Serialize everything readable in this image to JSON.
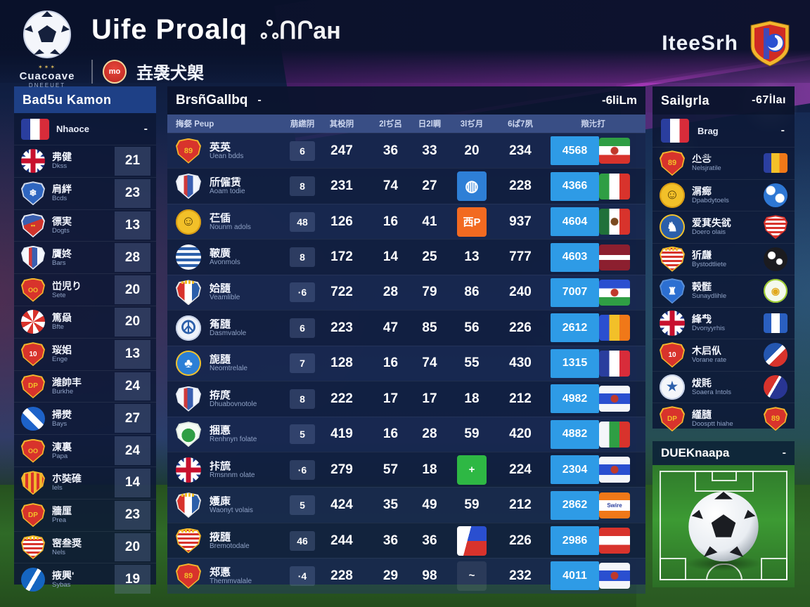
{
  "colors": {
    "accent_cyan": "#45c8f5",
    "points_blue": "#2e9be6",
    "panel_header_blue": "#1e4086",
    "badge_orange": "#f26a21",
    "badge_green": "#2eb844",
    "swoosh_purple": "#8a2f9e"
  },
  "header": {
    "title": "Uife Proalq",
    "title_script": "ஃՈՐан",
    "logo_text": "Cuacoave",
    "logo_subtext": "DNEEUET",
    "logo_stars": "✶✶✶",
    "badge_text": "mo",
    "cjk_text": "壵袰犬㮾",
    "right_text": "IteeSrh"
  },
  "left_panel": {
    "title": "Bad5u Kamon",
    "featured": {
      "name": "Nhaoce",
      "icon": "flag-france",
      "action": "-"
    },
    "items": [
      {
        "name": "弗健",
        "sub": "Dkss",
        "value": "21",
        "icon": "ball-ukflag"
      },
      {
        "name": "肩絆",
        "sub": "Bcds",
        "value": "23",
        "icon": "crest-bluewhite"
      },
      {
        "name": "徱実",
        "sub": "Dogts",
        "value": "13",
        "icon": "crest-redblue"
      },
      {
        "name": "贋㚵",
        "sub": "Bars",
        "value": "28",
        "icon": "crest-tower"
      },
      {
        "name": "峃児り",
        "sub": "Sete",
        "value": "20",
        "icon": "crest-redyellow"
      },
      {
        "name": "篤赑",
        "sub": "Bfte",
        "value": "20",
        "icon": "ball-redwhite"
      },
      {
        "name": "珱㚶",
        "sub": "Enge",
        "value": "13",
        "icon": "crest-ten"
      },
      {
        "name": "潍帥丰",
        "sub": "Burkhe",
        "value": "24",
        "icon": "crest-dp"
      },
      {
        "name": "掃燓",
        "sub": "Bays",
        "value": "27",
        "icon": "circle-bluestripe"
      },
      {
        "name": "涷裏",
        "sub": "Papa",
        "value": "24",
        "icon": "crest-redyellow"
      },
      {
        "name": "朩奘碓",
        "sub": "Iels",
        "value": "14",
        "icon": "crest-stripes"
      },
      {
        "name": "牆厘",
        "sub": "Prea",
        "value": "23",
        "icon": "crest-dp"
      },
      {
        "name": "宻叁奨",
        "sub": "Nels",
        "value": "20",
        "icon": "crest-crownstripes"
      },
      {
        "name": "掖興'",
        "sub": "Sybas",
        "value": "19",
        "icon": "circle-blue"
      }
    ]
  },
  "main_table": {
    "title": "BrsñGallbq",
    "collapse": "-",
    "link": "-6liLm",
    "columns": [
      "挴㛑 Peup",
      "萠繺阴",
      "其杸阴",
      "2lぢ呂",
      "日2l睭",
      "3lぢ月",
      "6ぱ7夙",
      "羪㲺打"
    ],
    "rows": [
      {
        "name": "英英",
        "sub": "Uean bdds",
        "icon": "crest-89",
        "badge": "6",
        "cells": [
          "247",
          "36",
          "33",
          "20",
          "234"
        ],
        "points": "4568",
        "flag": "flag-iran"
      },
      {
        "name": "斦僱赁",
        "sub": "Aoam todie",
        "icon": "crest-tower",
        "badge": "8",
        "cells": [
          "231",
          "74",
          "27",
          "@badge-blue-ball",
          "228"
        ],
        "points": "4366",
        "flag": "flag-italy"
      },
      {
        "name": "芢偛",
        "sub": "Nounm adols",
        "icon": "crest-smiley",
        "badge": "48",
        "cells": [
          "126",
          "16",
          "41",
          "@badge-orange-tgp",
          "937"
        ],
        "points": "4604",
        "flag": "flag-mexico"
      },
      {
        "name": "鞁廣",
        "sub": "Avonmols",
        "icon": "ball-bluestripes",
        "badge": "8",
        "cells": [
          "172",
          "14",
          "25",
          "13",
          "777"
        ],
        "points": "4603",
        "flag": "flag-latvia"
      },
      {
        "name": "姶膸",
        "sub": "Veamlible",
        "icon": "crest-crown",
        "badge": "·6",
        "cells": [
          "722",
          "28",
          "79",
          "86",
          "240"
        ],
        "points": "7007",
        "flag": "flag-bwg"
      },
      {
        "name": "䇶膸",
        "sub": "Dasmvalole",
        "icon": "circle-peace",
        "badge": "6",
        "cells": [
          "223",
          "47",
          "85",
          "56",
          "226"
        ],
        "points": "2612",
        "flag": "flag-byo"
      },
      {
        "name": "旎膸",
        "sub": "Neomtrelale",
        "icon": "circle-leaf",
        "badge": "7",
        "cells": [
          "128",
          "16",
          "74",
          "55",
          "430"
        ],
        "points": "1315",
        "flag": "flag-france"
      },
      {
        "name": "拵庹",
        "sub": "Dhuabovnotole",
        "icon": "crest-tower",
        "badge": "8",
        "cells": [
          "222",
          "17",
          "17",
          "18",
          "212"
        ],
        "points": "4982",
        "flag": "flag-wbw"
      },
      {
        "name": "捆悳",
        "sub": "Renhnyn folate",
        "icon": "crest-green",
        "badge": "5",
        "cells": [
          "419",
          "16",
          "28",
          "59",
          "420"
        ],
        "points": "4882",
        "flag": "flag-wgr"
      },
      {
        "name": "拤旈",
        "sub": "Rmsnnm olate",
        "icon": "ball-ukflag",
        "badge": "·6",
        "cells": [
          "279",
          "57",
          "18",
          "@badge-green-plus",
          "224"
        ],
        "points": "2304",
        "flag": "flag-wbw"
      },
      {
        "name": "嬳㢀",
        "sub": "Waonyt volais",
        "icon": "crest-crown",
        "badge": "5",
        "cells": [
          "424",
          "35",
          "49",
          "59",
          "212"
        ],
        "points": "2862",
        "flag": "flag-orange-swire"
      },
      {
        "name": "掖膸",
        "sub": "Bremotodale",
        "icon": "crest-crownstripes",
        "badge": "46",
        "cells": [
          "244",
          "36",
          "36",
          "@flag-ph",
          "226"
        ],
        "points": "2986",
        "flag": "flag-austria"
      },
      {
        "name": "郑悳",
        "sub": "Themmvalale",
        "icon": "crest-89",
        "badge": "·4",
        "cells": [
          "228",
          "29",
          "98",
          "@badge-faint",
          "232"
        ],
        "points": "4011",
        "flag": "flag-wbw"
      }
    ],
    "badge_labels": {
      "badge-orange-tgp": "西P",
      "badge-green-plus": "+",
      "badge-faint": "~",
      "badge-blue-ball": ""
    }
  },
  "right_panel": {
    "title": "Sailgrla",
    "link": "-67İlaı",
    "featured": {
      "name": "Brag",
      "icon": "flag-france",
      "action": "-"
    },
    "items": [
      {
        "name": "尐㪳",
        "sub": "Nelsjratile",
        "icon": "crest-89",
        "right_icon": "flag-romania"
      },
      {
        "name": "㴮㾿",
        "sub": "Dpabdytoels",
        "icon": "crest-smiley",
        "right_icon": "ball-bluewhite"
      },
      {
        "name": "爱萁失㞃",
        "sub": "Doero olais",
        "icon": "circle-rooster",
        "right_icon": "crest-lighthouse"
      },
      {
        "name": "㹞㼓",
        "sub": "Bystodtliete",
        "icon": "crest-crownstripes",
        "right_icon": "ball-dark"
      },
      {
        "name": "㨌䯗",
        "sub": "Sunaydlihle",
        "icon": "crest-towerblue",
        "right_icon": "circle-greenyellow"
      },
      {
        "name": "綘𢦔",
        "sub": "Dvonyyrhis",
        "icon": "ball-ukflag",
        "right_icon": "flag-bluewhite"
      },
      {
        "name": "木𡰪㐺",
        "sub": "Vorane rate",
        "icon": "crest-ten",
        "right_icon": "ball-pepsi"
      },
      {
        "name": "炦㲘",
        "sub": "Soaera Intols",
        "icon": "circle-bluestar",
        "right_icon": "ball-redblue"
      },
      {
        "name": "䌍膸",
        "sub": "Doosptt hiahe",
        "icon": "crest-dp",
        "right_icon": "crest-89"
      }
    ]
  },
  "pitch_panel": {
    "title": "DUEKnaapa",
    "collapse": "-"
  }
}
